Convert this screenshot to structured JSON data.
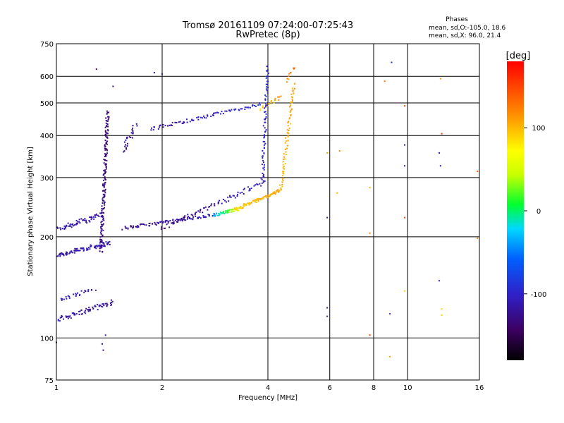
{
  "chart_data": {
    "type": "scatter",
    "title": "Tromsø 20161109 07:24:00-07:25:43",
    "subtitle": "RwPretec (8p)",
    "xlabel": "Frequency [MHz]",
    "ylabel": "Stationary phase Virtual Height [km]",
    "x_scale": "log",
    "y_scale": "log",
    "xlim": [
      1,
      16
    ],
    "ylim": [
      75,
      750
    ],
    "x_ticks": [
      "1",
      "2",
      "4",
      "6",
      "8",
      "10",
      "16"
    ],
    "x_tick_values": [
      1,
      2,
      4,
      6,
      8,
      10,
      16
    ],
    "y_ticks": [
      "75",
      "100",
      "200",
      "300",
      "400",
      "500",
      "600",
      "750"
    ],
    "y_tick_values": [
      75,
      100,
      200,
      300,
      400,
      500,
      600,
      750
    ],
    "grid": true,
    "phase_box": {
      "heading": "Phases",
      "line_o": "mean, sd,O:-105.0, 18.6",
      "line_x": "mean, sd,X:  96.0, 21.4"
    },
    "colorbar": {
      "label": "[deg]",
      "range": [
        -180,
        180
      ],
      "ticks": [
        "100",
        "0",
        "-100"
      ],
      "tick_values": [
        100,
        0,
        -100
      ]
    },
    "series": [
      {
        "trace_segments": [
          {
            "x0": 1.0,
            "x1": 1.42,
            "y0": 176,
            "y1": 192,
            "phase0": -115,
            "phase1": -110,
            "spread": 0.03,
            "n": 90
          },
          {
            "x0": 1.0,
            "x1": 1.33,
            "y0": 210,
            "y1": 232,
            "phase0": -112,
            "phase1": -120,
            "spread": 0.04,
            "n": 60
          },
          {
            "x0": 1.0,
            "x1": 1.45,
            "y0": 113,
            "y1": 128,
            "phase0": -110,
            "phase1": -125,
            "spread": 0.03,
            "n": 70
          },
          {
            "x0": 1.02,
            "x1": 1.28,
            "y0": 130,
            "y1": 140,
            "phase0": -105,
            "phase1": -115,
            "spread": 0.03,
            "n": 25
          },
          {
            "x0": 1.34,
            "x1": 1.4,
            "y0": 180,
            "y1": 470,
            "phase0": -125,
            "phase1": -135,
            "spread": 0.02,
            "n": 160
          },
          {
            "x0": 1.55,
            "x1": 1.68,
            "y0": 360,
            "y1": 430,
            "phase0": -125,
            "phase1": -120,
            "spread": 0.03,
            "n": 25
          },
          {
            "x0": 1.55,
            "x1": 2.8,
            "y0": 212,
            "y1": 232,
            "phase0": -130,
            "phase1": -110,
            "spread": 0.02,
            "n": 90
          },
          {
            "x0": 2.8,
            "x1": 3.3,
            "y0": 232,
            "y1": 242,
            "phase0": -40,
            "phase1": 60,
            "spread": 0.02,
            "n": 40
          },
          {
            "x0": 3.2,
            "x1": 4.35,
            "y0": 240,
            "y1": 275,
            "phase0": 90,
            "phase1": 110,
            "spread": 0.02,
            "n": 90
          },
          {
            "x0": 4.35,
            "x1": 4.75,
            "y0": 275,
            "y1": 570,
            "phase0": 100,
            "phase1": 110,
            "spread": 0.02,
            "n": 70
          },
          {
            "x0": 4.55,
            "x1": 4.75,
            "y0": 580,
            "y1": 640,
            "phase0": 110,
            "phase1": 130,
            "spread": 0.02,
            "n": 10
          },
          {
            "x0": 1.85,
            "x1": 3.8,
            "y0": 418,
            "y1": 495,
            "phase0": -120,
            "phase1": -95,
            "spread": 0.02,
            "n": 80
          },
          {
            "x0": 3.8,
            "x1": 4.35,
            "y0": 480,
            "y1": 520,
            "phase0": 80,
            "phase1": 120,
            "spread": 0.02,
            "n": 20
          },
          {
            "x0": 2.0,
            "x1": 3.9,
            "y0": 212,
            "y1": 290,
            "phase0": -135,
            "phase1": -100,
            "spread": 0.03,
            "n": 80
          },
          {
            "x0": 3.85,
            "x1": 4.0,
            "y0": 290,
            "y1": 640,
            "phase0": -105,
            "phase1": -95,
            "spread": 0.02,
            "n": 70
          }
        ],
        "scattered_points": [
          {
            "x": 1.3,
            "y": 630,
            "p": -130
          },
          {
            "x": 1.45,
            "y": 560,
            "p": -125
          },
          {
            "x": 1.9,
            "y": 615,
            "p": -120
          },
          {
            "x": 2.0,
            "y": 610,
            "p": -115
          },
          {
            "x": 5.9,
            "y": 355,
            "p": 110
          },
          {
            "x": 6.4,
            "y": 360,
            "p": 120
          },
          {
            "x": 6.3,
            "y": 270,
            "p": 100
          },
          {
            "x": 7.8,
            "y": 280,
            "p": 100
          },
          {
            "x": 7.8,
            "y": 205,
            "p": 120
          },
          {
            "x": 8.6,
            "y": 580,
            "p": 130
          },
          {
            "x": 9.0,
            "y": 660,
            "p": -90
          },
          {
            "x": 9.8,
            "y": 490,
            "p": 150
          },
          {
            "x": 9.8,
            "y": 375,
            "p": -110
          },
          {
            "x": 9.8,
            "y": 325,
            "p": -110
          },
          {
            "x": 9.8,
            "y": 228,
            "p": 150
          },
          {
            "x": 9.8,
            "y": 138,
            "p": 90
          },
          {
            "x": 12.4,
            "y": 590,
            "p": 110
          },
          {
            "x": 12.5,
            "y": 405,
            "p": 150
          },
          {
            "x": 12.3,
            "y": 355,
            "p": -110
          },
          {
            "x": 12.4,
            "y": 325,
            "p": -110
          },
          {
            "x": 12.3,
            "y": 148,
            "p": -100
          },
          {
            "x": 12.5,
            "y": 122,
            "p": 90
          },
          {
            "x": 12.5,
            "y": 117,
            "p": 90
          },
          {
            "x": 15.8,
            "y": 313,
            "p": 140
          },
          {
            "x": 15.8,
            "y": 198,
            "p": 120
          },
          {
            "x": 5.9,
            "y": 228,
            "p": -110
          },
          {
            "x": 5.9,
            "y": 123,
            "p": -110
          },
          {
            "x": 5.9,
            "y": 116,
            "p": -110
          },
          {
            "x": 8.9,
            "y": 118,
            "p": -100
          },
          {
            "x": 8.9,
            "y": 88,
            "p": 110
          },
          {
            "x": 7.8,
            "y": 102,
            "p": 150
          },
          {
            "x": 1.36,
            "y": 92,
            "p": -130
          },
          {
            "x": 1.38,
            "y": 102,
            "p": -110
          },
          {
            "x": 1.35,
            "y": 96,
            "p": -120
          },
          {
            "x": 1.0,
            "y": 97,
            "p": -120
          }
        ]
      }
    ]
  }
}
